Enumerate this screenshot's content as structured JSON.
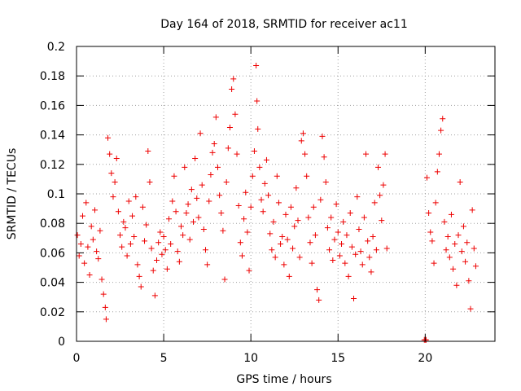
{
  "chart_data": {
    "type": "scatter",
    "title": "Day 164 of 2018, SRMTID for receiver ac11",
    "xlabel": "GPS time / hours",
    "ylabel": "SRMTID / TECUs",
    "xlim": [
      0,
      24
    ],
    "ylim": [
      0,
      0.2
    ],
    "x_ticks": [
      0,
      5,
      10,
      15,
      20
    ],
    "x_tick_labels": [
      "0",
      "5",
      "10",
      "15",
      "20"
    ],
    "y_ticks": [
      0,
      0.02,
      0.04,
      0.06,
      0.08,
      0.1,
      0.12,
      0.14,
      0.16,
      0.18,
      0.2
    ],
    "y_tick_labels": [
      "0",
      "0.02",
      "0.04",
      "0.06",
      "0.08",
      "0.1",
      "0.12",
      "0.14",
      "0.16",
      "0.18",
      "0.2"
    ],
    "grid": true,
    "marker": "+",
    "color": "#ee0000",
    "series": [
      {
        "name": "SRMTID",
        "points": [
          [
            0.05,
            0.072
          ],
          [
            0.15,
            0.058
          ],
          [
            0.25,
            0.066
          ],
          [
            0.35,
            0.085
          ],
          [
            0.45,
            0.053
          ],
          [
            0.55,
            0.094
          ],
          [
            0.65,
            0.064
          ],
          [
            0.75,
            0.045
          ],
          [
            0.85,
            0.078
          ],
          [
            0.95,
            0.069
          ],
          [
            1.05,
            0.089
          ],
          [
            1.15,
            0.061
          ],
          [
            1.25,
            0.056
          ],
          [
            1.35,
            0.075
          ],
          [
            1.45,
            0.042
          ],
          [
            1.55,
            0.032
          ],
          [
            1.65,
            0.023
          ],
          [
            1.7,
            0.015
          ],
          [
            1.8,
            0.138
          ],
          [
            1.9,
            0.127
          ],
          [
            2.0,
            0.114
          ],
          [
            2.1,
            0.098
          ],
          [
            2.2,
            0.108
          ],
          [
            2.3,
            0.124
          ],
          [
            2.4,
            0.088
          ],
          [
            2.5,
            0.072
          ],
          [
            2.6,
            0.064
          ],
          [
            2.7,
            0.081
          ],
          [
            2.8,
            0.077
          ],
          [
            2.9,
            0.058
          ],
          [
            3.0,
            0.095
          ],
          [
            3.1,
            0.066
          ],
          [
            3.2,
            0.085
          ],
          [
            3.3,
            0.071
          ],
          [
            3.4,
            0.098
          ],
          [
            3.5,
            0.052
          ],
          [
            3.6,
            0.044
          ],
          [
            3.7,
            0.037
          ],
          [
            3.8,
            0.091
          ],
          [
            3.9,
            0.068
          ],
          [
            4.0,
            0.079
          ],
          [
            4.1,
            0.129
          ],
          [
            4.2,
            0.108
          ],
          [
            4.3,
            0.063
          ],
          [
            4.4,
            0.048
          ],
          [
            4.5,
            0.031
          ],
          [
            4.6,
            0.055
          ],
          [
            4.7,
            0.067
          ],
          [
            4.8,
            0.074
          ],
          [
            4.9,
            0.059
          ],
          [
            5.0,
            0.071
          ],
          [
            5.1,
            0.062
          ],
          [
            5.2,
            0.049
          ],
          [
            5.3,
            0.083
          ],
          [
            5.4,
            0.066
          ],
          [
            5.5,
            0.095
          ],
          [
            5.6,
            0.112
          ],
          [
            5.7,
            0.088
          ],
          [
            5.8,
            0.061
          ],
          [
            5.9,
            0.054
          ],
          [
            6.0,
            0.078
          ],
          [
            6.1,
            0.072
          ],
          [
            6.2,
            0.118
          ],
          [
            6.3,
            0.087
          ],
          [
            6.4,
            0.093
          ],
          [
            6.5,
            0.069
          ],
          [
            6.6,
            0.103
          ],
          [
            6.7,
            0.081
          ],
          [
            6.8,
            0.124
          ],
          [
            6.9,
            0.097
          ],
          [
            7.0,
            0.084
          ],
          [
            7.1,
            0.141
          ],
          [
            7.2,
            0.106
          ],
          [
            7.3,
            0.076
          ],
          [
            7.4,
            0.062
          ],
          [
            7.5,
            0.052
          ],
          [
            7.6,
            0.095
          ],
          [
            7.7,
            0.113
          ],
          [
            7.8,
            0.128
          ],
          [
            7.9,
            0.134
          ],
          [
            8.0,
            0.152
          ],
          [
            8.1,
            0.118
          ],
          [
            8.2,
            0.099
          ],
          [
            8.3,
            0.087
          ],
          [
            8.4,
            0.075
          ],
          [
            8.5,
            0.042
          ],
          [
            8.6,
            0.108
          ],
          [
            8.7,
            0.131
          ],
          [
            8.8,
            0.145
          ],
          [
            8.9,
            0.171
          ],
          [
            9.0,
            0.178
          ],
          [
            9.1,
            0.154
          ],
          [
            9.2,
            0.127
          ],
          [
            9.3,
            0.092
          ],
          [
            9.4,
            0.067
          ],
          [
            9.5,
            0.058
          ],
          [
            9.6,
            0.083
          ],
          [
            9.7,
            0.101
          ],
          [
            9.8,
            0.074
          ],
          [
            9.9,
            0.048
          ],
          [
            10.0,
            0.091
          ],
          [
            10.1,
            0.112
          ],
          [
            10.2,
            0.129
          ],
          [
            10.3,
            0.187
          ],
          [
            10.35,
            0.163
          ],
          [
            10.4,
            0.144
          ],
          [
            10.5,
            0.118
          ],
          [
            10.6,
            0.096
          ],
          [
            10.7,
            0.088
          ],
          [
            10.8,
            0.107
          ],
          [
            10.9,
            0.123
          ],
          [
            11.0,
            0.099
          ],
          [
            11.1,
            0.073
          ],
          [
            11.2,
            0.062
          ],
          [
            11.3,
            0.081
          ],
          [
            11.4,
            0.057
          ],
          [
            11.5,
            0.112
          ],
          [
            11.6,
            0.094
          ],
          [
            11.7,
            0.066
          ],
          [
            11.8,
            0.071
          ],
          [
            11.9,
            0.052
          ],
          [
            12.0,
            0.086
          ],
          [
            12.1,
            0.069
          ],
          [
            12.2,
            0.044
          ],
          [
            12.3,
            0.091
          ],
          [
            12.4,
            0.063
          ],
          [
            12.5,
            0.078
          ],
          [
            12.6,
            0.104
          ],
          [
            12.7,
            0.082
          ],
          [
            12.8,
            0.057
          ],
          [
            12.9,
            0.136
          ],
          [
            13.0,
            0.141
          ],
          [
            13.1,
            0.127
          ],
          [
            13.2,
            0.112
          ],
          [
            13.3,
            0.084
          ],
          [
            13.4,
            0.067
          ],
          [
            13.5,
            0.053
          ],
          [
            13.6,
            0.091
          ],
          [
            13.7,
            0.072
          ],
          [
            13.8,
            0.035
          ],
          [
            13.9,
            0.028
          ],
          [
            14.0,
            0.096
          ],
          [
            14.1,
            0.139
          ],
          [
            14.2,
            0.125
          ],
          [
            14.3,
            0.108
          ],
          [
            14.4,
            0.077
          ],
          [
            14.5,
            0.062
          ],
          [
            14.6,
            0.084
          ],
          [
            14.7,
            0.055
          ],
          [
            14.8,
            0.069
          ],
          [
            14.9,
            0.093
          ],
          [
            15.0,
            0.074
          ],
          [
            15.1,
            0.058
          ],
          [
            15.2,
            0.066
          ],
          [
            15.3,
            0.081
          ],
          [
            15.4,
            0.053
          ],
          [
            15.5,
            0.072
          ],
          [
            15.6,
            0.044
          ],
          [
            15.7,
            0.087
          ],
          [
            15.8,
            0.064
          ],
          [
            15.9,
            0.029
          ],
          [
            16.0,
            0.059
          ],
          [
            16.1,
            0.098
          ],
          [
            16.2,
            0.076
          ],
          [
            16.3,
            0.061
          ],
          [
            16.4,
            0.052
          ],
          [
            16.5,
            0.084
          ],
          [
            16.6,
            0.127
          ],
          [
            16.7,
            0.068
          ],
          [
            16.8,
            0.057
          ],
          [
            16.9,
            0.047
          ],
          [
            17.0,
            0.071
          ],
          [
            17.1,
            0.094
          ],
          [
            17.2,
            0.062
          ],
          [
            17.3,
            0.118
          ],
          [
            17.4,
            0.099
          ],
          [
            17.5,
            0.082
          ],
          [
            17.6,
            0.106
          ],
          [
            17.7,
            0.127
          ],
          [
            17.8,
            0.063
          ],
          [
            19.95,
            0.001
          ],
          [
            20.0,
            0.001
          ],
          [
            20.05,
            0.001
          ],
          [
            20.1,
            0.111
          ],
          [
            20.2,
            0.087
          ],
          [
            20.3,
            0.074
          ],
          [
            20.4,
            0.068
          ],
          [
            20.5,
            0.053
          ],
          [
            20.6,
            0.094
          ],
          [
            20.7,
            0.115
          ],
          [
            20.8,
            0.127
          ],
          [
            20.9,
            0.143
          ],
          [
            21.0,
            0.151
          ],
          [
            21.1,
            0.081
          ],
          [
            21.2,
            0.062
          ],
          [
            21.3,
            0.071
          ],
          [
            21.4,
            0.057
          ],
          [
            21.5,
            0.086
          ],
          [
            21.6,
            0.049
          ],
          [
            21.7,
            0.066
          ],
          [
            21.8,
            0.038
          ],
          [
            21.9,
            0.072
          ],
          [
            22.0,
            0.108
          ],
          [
            22.1,
            0.061
          ],
          [
            22.2,
            0.078
          ],
          [
            22.3,
            0.054
          ],
          [
            22.4,
            0.067
          ],
          [
            22.5,
            0.041
          ],
          [
            22.6,
            0.022
          ],
          [
            22.7,
            0.089
          ],
          [
            22.8,
            0.063
          ],
          [
            22.9,
            0.051
          ]
        ]
      }
    ]
  }
}
